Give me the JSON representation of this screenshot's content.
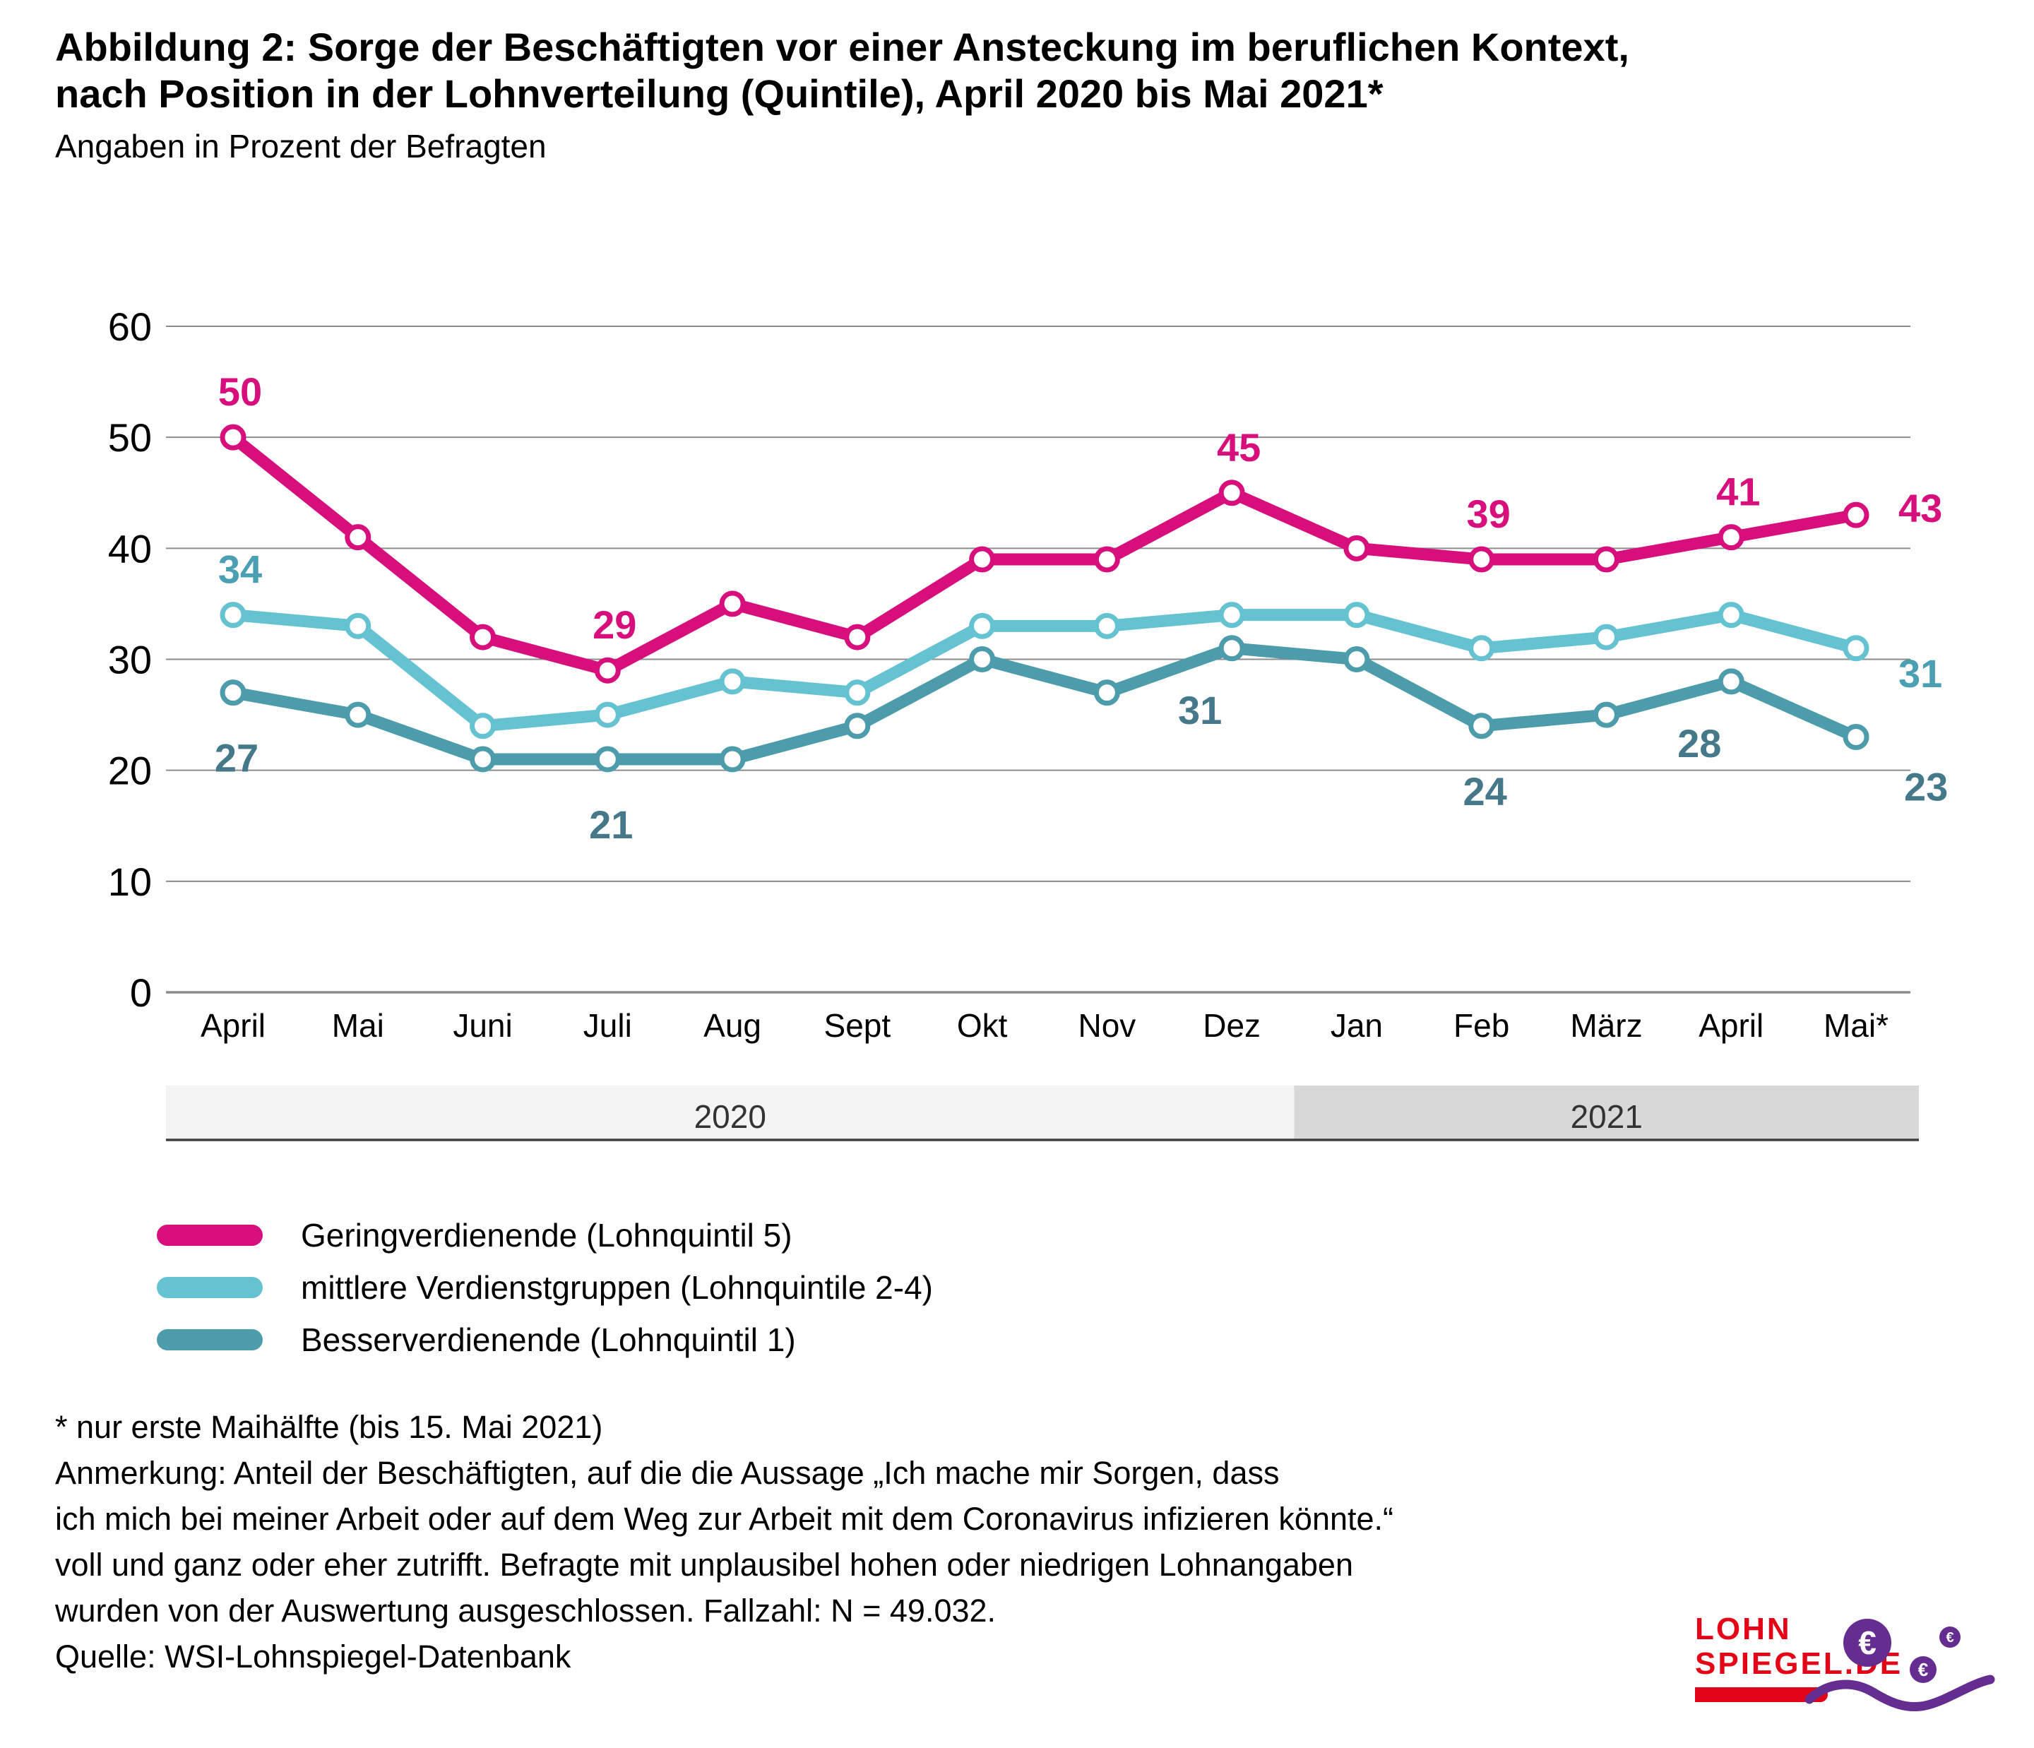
{
  "header": {
    "title_line1": "Abbildung 2: Sorge der Beschäftigten vor einer Ansteckung im beruflichen Kontext,",
    "title_line2": "nach Position in der Lohnverteilung (Quintile), April 2020 bis Mai 2021*",
    "subtitle": "Angaben in Prozent der Befragten"
  },
  "chart_data": {
    "type": "line",
    "unit": "percent of respondents",
    "categories": [
      "April",
      "Mai",
      "Juni",
      "Juli",
      "Aug",
      "Sept",
      "Okt",
      "Nov",
      "Dez",
      "Jan",
      "Feb",
      "März",
      "April",
      "Mai*"
    ],
    "y_axis": {
      "min": 0,
      "max": 60,
      "step": 10,
      "gridline_color": "#8c8c8c"
    },
    "grid": "horizontal-only",
    "legend_position": "bottom-left",
    "x_year_bands": [
      {
        "label": "2020",
        "from_index": 0,
        "to_index": 8,
        "color": "#f4f4f4"
      },
      {
        "label": "2021",
        "from_index": 9,
        "to_index": 13,
        "color": "#d8d8d8"
      }
    ],
    "series": [
      {
        "name": "Geringverdienende (Lohnquintil 5)",
        "color": "#d60f7d",
        "label_color": "#d60f7d",
        "values": [
          50,
          41,
          32,
          29,
          35,
          32,
          39,
          39,
          45,
          40,
          39,
          39,
          41,
          43
        ]
      },
      {
        "name": "mittlere Verdienstgruppen (Lohnquintile 2-4)",
        "color": "#65c3d1",
        "label_color": "#4aa0b2",
        "values": [
          34,
          33,
          24,
          25,
          28,
          27,
          33,
          33,
          34,
          34,
          31,
          32,
          34,
          31
        ]
      },
      {
        "name": "Besserverdienende (Lohnquintil 1)",
        "color": "#4d9cab",
        "label_color": "#45798a",
        "values": [
          27,
          25,
          21,
          21,
          21,
          24,
          30,
          27,
          31,
          30,
          24,
          25,
          28,
          23
        ]
      }
    ],
    "point_labels": [
      {
        "series_index": 0,
        "point_index": 0,
        "text": "50",
        "position": "above"
      },
      {
        "series_index": 0,
        "point_index": 3,
        "text": "29",
        "position": "above"
      },
      {
        "series_index": 0,
        "point_index": 8,
        "text": "45",
        "position": "above"
      },
      {
        "series_index": 0,
        "point_index": 10,
        "text": "39",
        "position": "above"
      },
      {
        "series_index": 0,
        "point_index": 12,
        "text": "41",
        "position": "above"
      },
      {
        "series_index": 0,
        "point_index": 13,
        "text": "43",
        "position": "right-above"
      },
      {
        "series_index": 1,
        "point_index": 0,
        "text": "34",
        "position": "above"
      },
      {
        "series_index": 1,
        "point_index": 13,
        "text": "31",
        "position": "right"
      },
      {
        "series_index": 2,
        "point_index": 0,
        "text": "27",
        "position": "below"
      },
      {
        "series_index": 2,
        "point_index": 3,
        "text": "21",
        "position": "below"
      },
      {
        "series_index": 2,
        "point_index": 8,
        "text": "31",
        "position": "below-left"
      },
      {
        "series_index": 2,
        "point_index": 10,
        "text": "24",
        "position": "below"
      },
      {
        "series_index": 2,
        "point_index": 12,
        "text": "28",
        "position": "below-left"
      },
      {
        "series_index": 2,
        "point_index": 13,
        "text": "23",
        "position": "right-below"
      }
    ]
  },
  "legend": {
    "items": [
      {
        "label": "Geringverdienende (Lohnquintil 5)",
        "color": "#d60f7d"
      },
      {
        "label": "mittlere Verdienstgruppen (Lohnquintile 2-4)",
        "color": "#65c3d1"
      },
      {
        "label": "Besserverdienende (Lohnquintil 1)",
        "color": "#4d9cab"
      }
    ]
  },
  "footnotes": {
    "lines": [
      "* nur erste Maihälfte (bis 15. Mai 2021)",
      "Anmerkung: Anteil der Beschäftigten, auf die die Aussage „Ich mache mir Sorgen, dass",
      "ich mich bei meiner Arbeit oder auf dem Weg zur Arbeit mit dem Coronavirus infizieren könnte.“",
      "voll und ganz oder eher zutrifft. Befragte mit unplausibel hohen oder niedrigen Lohnangaben",
      "wurden von der Auswertung ausgeschlossen. Fallzahl: N = 49.032.",
      "Quelle: WSI-Lohnspiegel-Datenbank"
    ]
  },
  "logo": {
    "line1": "LOHN",
    "line2": "SPIEGEL.DE",
    "euro_symbol": "€",
    "red": "#e30517",
    "purple": "#662d91"
  }
}
